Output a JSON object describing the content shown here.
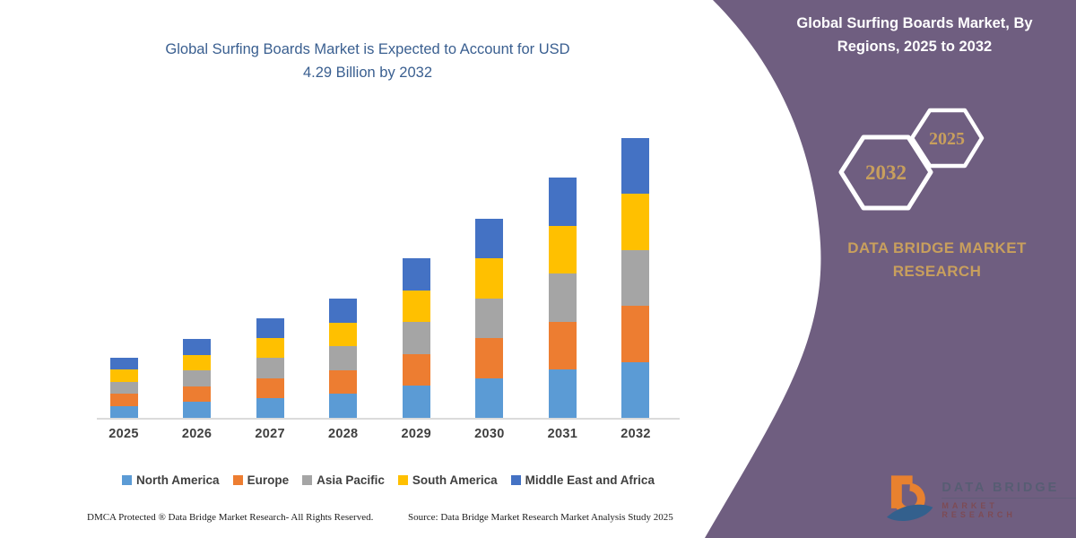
{
  "colors": {
    "purple_panel": "#6F5E80",
    "gold": "#C89F5D",
    "chart_title": "#3A5F90",
    "axis_line": "#DBDBDB",
    "label_text": "#3F3F3F"
  },
  "chart": {
    "title_lines": [
      "Global Surfing Boards Market is Expected to Account for USD",
      "4.29 Billion by 2032"
    ]
  },
  "chart_data": {
    "type": "bar",
    "stacked": true,
    "title": "Global Surfing Boards Market is Expected to Account for USD 4.29 Billion by 2032",
    "unit": "USD Billion",
    "categories": [
      "2025",
      "2026",
      "2027",
      "2028",
      "2029",
      "2030",
      "2031",
      "2032"
    ],
    "totals": [
      0.92,
      1.21,
      1.53,
      1.83,
      2.45,
      3.05,
      3.69,
      4.29
    ],
    "series": [
      {
        "name": "North America",
        "color": "#5B9BD5",
        "values": [
          0.18,
          0.24,
          0.31,
          0.37,
          0.49,
          0.61,
          0.74,
          0.86
        ]
      },
      {
        "name": "Europe",
        "color": "#ED7D31",
        "values": [
          0.18,
          0.24,
          0.31,
          0.37,
          0.49,
          0.61,
          0.74,
          0.86
        ]
      },
      {
        "name": "Asia Pacific",
        "color": "#A5A5A5",
        "values": [
          0.18,
          0.24,
          0.31,
          0.37,
          0.49,
          0.61,
          0.74,
          0.86
        ]
      },
      {
        "name": "South America",
        "color": "#FFC000",
        "values": [
          0.18,
          0.24,
          0.31,
          0.37,
          0.49,
          0.61,
          0.74,
          0.86
        ]
      },
      {
        "name": "Middle East and Africa",
        "color": "#4472C4",
        "values": [
          0.18,
          0.24,
          0.31,
          0.37,
          0.49,
          0.61,
          0.74,
          0.86
        ]
      }
    ],
    "xlabel": "",
    "ylabel": "",
    "ylim": [
      0,
      4.29
    ],
    "grid": false,
    "legend_position": "bottom"
  },
  "side_panel": {
    "title_lines": [
      "Global Surfing Boards Market, By",
      "Regions, 2025 to 2032"
    ],
    "hexagons": [
      {
        "label": "2032"
      },
      {
        "label": "2025"
      }
    ],
    "brand_lines": [
      "DATA BRIDGE MARKET",
      "RESEARCH"
    ]
  },
  "footer": {
    "dmca": "DMCA Protected ® Data Bridge Market Research-  All Rights Reserved.",
    "source": "Source: Data Bridge Market Research  Market Analysis Study 2025"
  },
  "logo": {
    "name": "DATA BRIDGE",
    "tagline": "MARKET RESEARCH"
  }
}
